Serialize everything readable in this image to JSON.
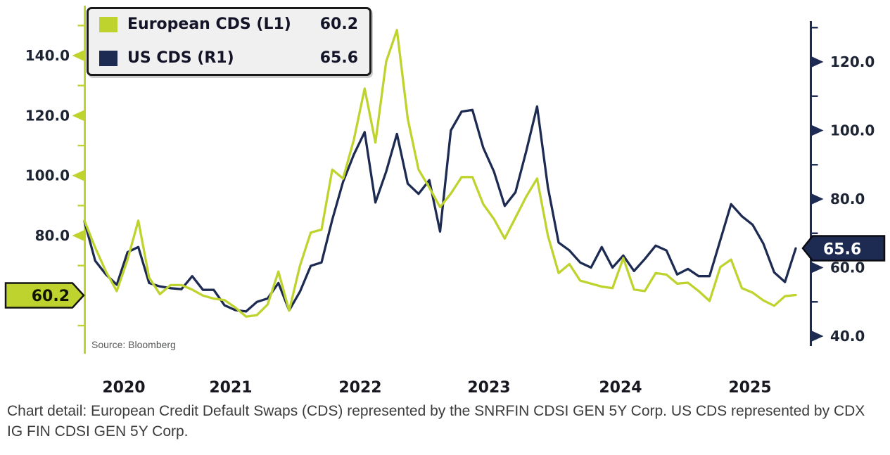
{
  "legend": {
    "items": [
      {
        "label": "European CDS (L1)",
        "value": "60.2",
        "color": "#bfd32f"
      },
      {
        "label": "US CDS (R1)",
        "value": "65.6",
        "color": "#1d2b52"
      }
    ]
  },
  "markers": {
    "left": {
      "value": "60.2"
    },
    "right": {
      "value": "65.6"
    }
  },
  "source_note": "Source: Bloomberg",
  "caption": "Chart detail: European Credit Default Swaps (CDS) represented by the SNRFIN CDSI GEN 5Y Corp. US CDS represented by CDX IG FIN CDSI GEN 5Y Corp.",
  "chart_data": {
    "type": "line",
    "title": "",
    "x_labels": [
      "2020",
      "2021",
      "2022",
      "2023",
      "2024",
      "2025"
    ],
    "frequency": "monthly (values estimated from plot)",
    "start_month": "2020-05",
    "end_month": "2025-11",
    "grid": false,
    "legend_position": "top-left",
    "axes": {
      "left": {
        "side": "left",
        "color": "#bfd32f",
        "ticks": [
          {
            "value": 140,
            "label": "140.0"
          },
          {
            "value": 120,
            "label": "120.0"
          },
          {
            "value": 100,
            "label": "100.0"
          },
          {
            "value": 80,
            "label": "80.0"
          }
        ],
        "minor_ticks": [
          150,
          130,
          110,
          90,
          70,
          50
        ],
        "range": [
          40,
          157
        ],
        "marker": {
          "value": 60.2,
          "label": "60.2"
        }
      },
      "right": {
        "side": "right",
        "color": "#1d2b52",
        "ticks": [
          {
            "value": 120,
            "label": "120.0"
          },
          {
            "value": 100,
            "label": "100.0"
          },
          {
            "value": 80,
            "label": "80.0"
          },
          {
            "value": 60,
            "label": "60.0"
          },
          {
            "value": 40,
            "label": "40.0"
          }
        ],
        "minor_ticks": [
          130,
          110,
          90,
          70,
          50
        ],
        "range": [
          37,
          133
        ],
        "marker": {
          "value": 65.6,
          "label": "65.6"
        }
      }
    },
    "series": [
      {
        "name": "European CDS (L1)",
        "axis": "left",
        "color": "#bfd32f",
        "last_value": 60.2,
        "values": [
          85,
          76,
          68,
          61.5,
          72,
          85,
          66,
          60.5,
          63.5,
          63.5,
          62,
          60,
          59,
          58.5,
          56,
          53,
          53.5,
          57,
          68,
          55,
          70,
          81,
          82,
          102,
          99,
          112,
          129,
          111,
          138,
          148.5,
          119,
          102,
          96,
          89.5,
          94,
          99.5,
          99.5,
          90.5,
          85.5,
          79,
          86,
          93,
          99,
          80,
          67.5,
          70.5,
          65,
          64,
          63,
          62.5,
          72.5,
          62,
          61.5,
          67.5,
          67,
          64,
          64.3,
          61.5,
          58.2,
          69.5,
          72,
          62.5,
          61,
          58.4,
          56.6,
          59.8,
          60.2
        ]
      },
      {
        "name": "US CDS (R1)",
        "axis": "right",
        "color": "#1d2b52",
        "last_value": 65.6,
        "values": [
          73.5,
          62,
          58,
          55,
          64.5,
          66,
          55.5,
          54.5,
          54,
          53.7,
          57.5,
          53.5,
          53.5,
          49,
          47.6,
          47.2,
          50,
          51,
          55.5,
          47.5,
          53,
          60.5,
          61.5,
          74,
          85,
          93,
          99.5,
          79,
          88,
          99,
          84.5,
          81.5,
          85.5,
          70.5,
          100,
          105.5,
          106,
          95,
          88,
          78,
          82,
          94,
          107,
          83.5,
          67.3,
          65,
          61.5,
          60,
          66,
          60,
          63.5,
          59,
          62.5,
          66.4,
          65,
          58,
          59.6,
          57.5,
          57.5,
          68,
          78.5,
          75,
          72.5,
          67,
          58.6,
          55.8,
          65.6
        ]
      }
    ]
  }
}
